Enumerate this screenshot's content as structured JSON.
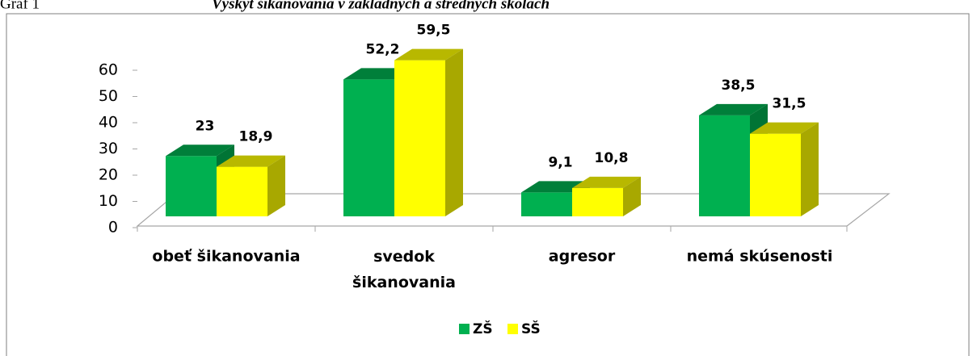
{
  "chart_data": {
    "type": "bar3d",
    "figure_label": "Graf 1",
    "title": "Výskyt šikanovania v základných a stredných školách",
    "categories": [
      "obeť šikanovania",
      "svedok šikanovania",
      "agresor",
      "nemá skúsenosti"
    ],
    "series": [
      {
        "name": "ZŠ",
        "color": "#00b050",
        "values": [
          23,
          52.2,
          9.1,
          38.5
        ],
        "value_labels": [
          "23",
          "52,2",
          "9,1",
          "38,5"
        ]
      },
      {
        "name": "SŠ",
        "color": "#ffff00",
        "values": [
          18.9,
          59.5,
          10.8,
          31.5
        ],
        "value_labels": [
          "18,9",
          "59,5",
          "10,8",
          "31,5"
        ]
      }
    ],
    "ylim": [
      0,
      60
    ],
    "yticks": [
      0,
      10,
      20,
      30,
      40,
      50,
      60
    ],
    "legend": "bottom"
  }
}
